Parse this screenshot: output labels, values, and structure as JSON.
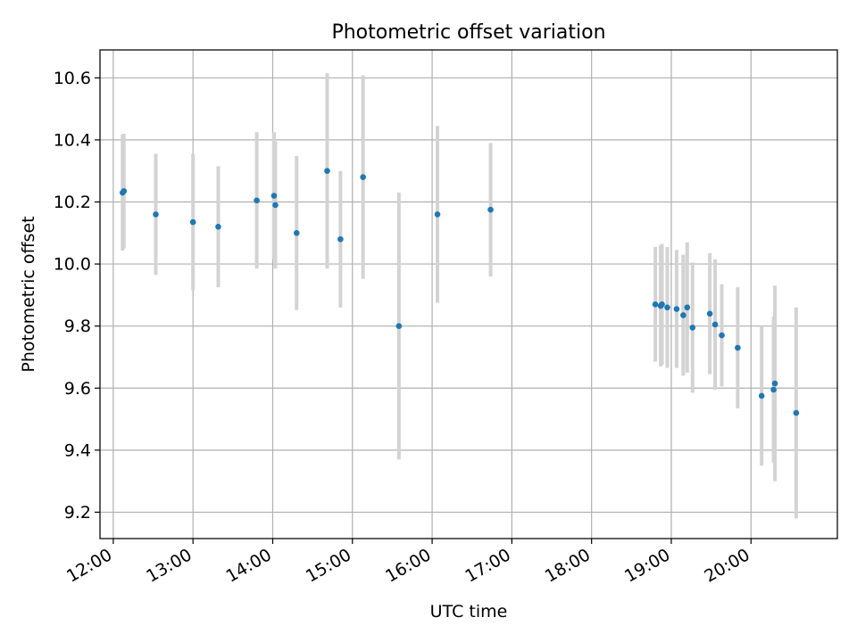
{
  "chart_data": {
    "type": "scatter",
    "title": "Photometric offset variation",
    "xlabel": "UTC time",
    "ylabel": "Photometric offset",
    "xlim": [
      "11:50",
      "21:05"
    ],
    "ylim": [
      9.115,
      10.69
    ],
    "x_ticks": [
      "12:00",
      "13:00",
      "14:00",
      "15:00",
      "16:00",
      "17:00",
      "18:00",
      "19:00",
      "20:00"
    ],
    "y_ticks": [
      "9.2",
      "9.4",
      "9.6",
      "9.8",
      "10.0",
      "10.2",
      "10.4",
      "10.6"
    ],
    "grid": true,
    "colors": {
      "point": "#1f77b4",
      "errorbar": "#d3d3d3",
      "grid": "#b0b0b0"
    },
    "points": [
      {
        "x": "12:07",
        "y": 10.23,
        "yerr": 0.187
      },
      {
        "x": "12:08",
        "y": 10.235,
        "yerr": 0.185
      },
      {
        "x": "12:32",
        "y": 10.16,
        "yerr": 0.195
      },
      {
        "x": "13:00",
        "y": 10.135,
        "yerr": 0.22
      },
      {
        "x": "13:19",
        "y": 10.12,
        "yerr": 0.195
      },
      {
        "x": "13:48",
        "y": 10.205,
        "yerr": 0.22
      },
      {
        "x": "14:01",
        "y": 10.22,
        "yerr": 0.205
      },
      {
        "x": "14:02",
        "y": 10.19,
        "yerr": 0.205
      },
      {
        "x": "14:18",
        "y": 10.1,
        "yerr": 0.248
      },
      {
        "x": "14:41",
        "y": 10.3,
        "yerr": 0.315
      },
      {
        "x": "14:51",
        "y": 10.08,
        "yerr": 0.22
      },
      {
        "x": "15:08",
        "y": 10.28,
        "yerr": 0.328
      },
      {
        "x": "15:35",
        "y": 9.8,
        "yerr": 0.43
      },
      {
        "x": "16:04",
        "y": 10.16,
        "yerr": 0.285
      },
      {
        "x": "16:44",
        "y": 10.175,
        "yerr": 0.215
      },
      {
        "x": "18:48",
        "y": 9.87,
        "yerr": 0.185
      },
      {
        "x": "18:52",
        "y": 9.865,
        "yerr": 0.195
      },
      {
        "x": "18:53",
        "y": 9.87,
        "yerr": 0.195
      },
      {
        "x": "18:57",
        "y": 9.86,
        "yerr": 0.195
      },
      {
        "x": "19:04",
        "y": 9.855,
        "yerr": 0.19
      },
      {
        "x": "19:09",
        "y": 9.835,
        "yerr": 0.195
      },
      {
        "x": "19:12",
        "y": 9.86,
        "yerr": 0.21
      },
      {
        "x": "19:16",
        "y": 9.795,
        "yerr": 0.21
      },
      {
        "x": "19:29",
        "y": 9.84,
        "yerr": 0.195
      },
      {
        "x": "19:33",
        "y": 9.805,
        "yerr": 0.21
      },
      {
        "x": "19:38",
        "y": 9.77,
        "yerr": 0.165
      },
      {
        "x": "19:50",
        "y": 9.73,
        "yerr": 0.195
      },
      {
        "x": "20:08",
        "y": 9.575,
        "yerr": 0.225
      },
      {
        "x": "20:17",
        "y": 9.595,
        "yerr": 0.235
      },
      {
        "x": "20:18",
        "y": 9.615,
        "yerr": 0.315
      },
      {
        "x": "20:34",
        "y": 9.52,
        "yerr": 0.34
      }
    ]
  }
}
